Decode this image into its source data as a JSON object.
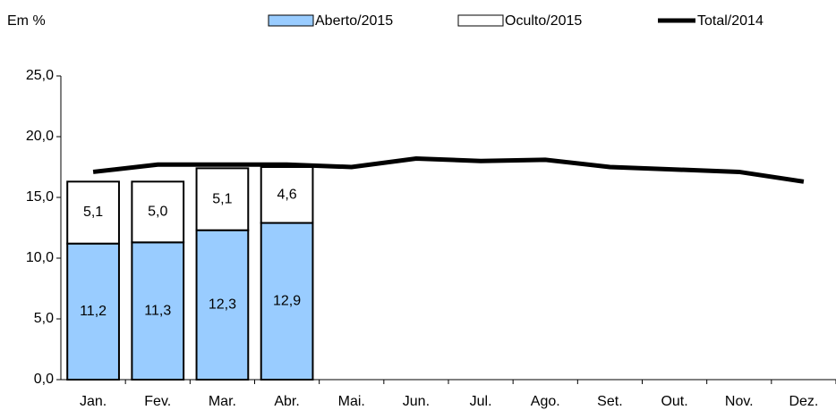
{
  "chart_data": {
    "type": "stacked-bar-line",
    "y_label": "Em %",
    "categories": [
      "Jan.",
      "Fev.",
      "Mar.",
      "Abr.",
      "Mai.",
      "Jun.",
      "Jul.",
      "Ago.",
      "Set.",
      "Out.",
      "Nov.",
      "Dez."
    ],
    "series": [
      {
        "name": "Aberto/2015",
        "type": "bar",
        "color": "#99ccff",
        "values": [
          11.2,
          11.3,
          12.3,
          12.9,
          null,
          null,
          null,
          null,
          null,
          null,
          null,
          null
        ],
        "value_labels": [
          "11,2",
          "11,3",
          "12,3",
          "12,9",
          null,
          null,
          null,
          null,
          null,
          null,
          null,
          null
        ]
      },
      {
        "name": "Oculto/2015",
        "type": "bar",
        "color": "#ffffff",
        "values": [
          5.1,
          5.0,
          5.1,
          4.6,
          null,
          null,
          null,
          null,
          null,
          null,
          null,
          null
        ],
        "value_labels": [
          "5,1",
          "5,0",
          "5,1",
          "4,6",
          null,
          null,
          null,
          null,
          null,
          null,
          null,
          null
        ]
      },
      {
        "name": "Total/2014",
        "type": "line",
        "color": "#000000",
        "values": [
          17.1,
          17.7,
          17.7,
          17.7,
          17.5,
          18.2,
          18.0,
          18.1,
          17.5,
          17.3,
          17.1,
          16.3
        ]
      }
    ],
    "ylim": [
      0,
      25
    ],
    "yticks": [
      {
        "value": 0,
        "label": "0,0"
      },
      {
        "value": 5,
        "label": "5,0"
      },
      {
        "value": 10,
        "label": "10,0"
      },
      {
        "value": 15,
        "label": "15,0"
      },
      {
        "value": 20,
        "label": "20,0"
      },
      {
        "value": 25,
        "label": "25,0"
      }
    ],
    "grid": false
  }
}
